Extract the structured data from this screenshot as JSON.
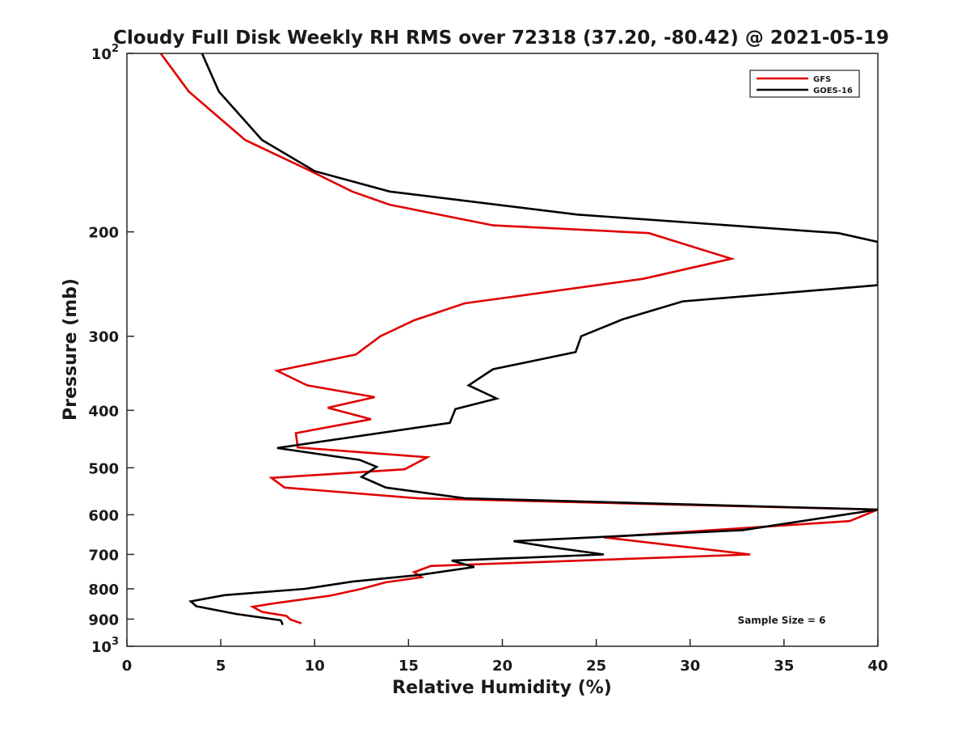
{
  "chart_data": {
    "type": "line",
    "title": "Cloudy Full Disk Weekly RH RMS over 72318 (37.20, -80.42) @ 2021-05-19",
    "xlabel": "Relative Humidity (%)",
    "ylabel": "Pressure (mb)",
    "xlim": [
      0,
      40
    ],
    "ylim": [
      100,
      1000
    ],
    "yscale": "log",
    "y_reversed": true,
    "grid": false,
    "legend_position": "top-right",
    "x_ticks": [
      {
        "value": 0,
        "label": "0"
      },
      {
        "value": 5,
        "label": "5"
      },
      {
        "value": 10,
        "label": "10"
      },
      {
        "value": 15,
        "label": "15"
      },
      {
        "value": 20,
        "label": "20"
      },
      {
        "value": 25,
        "label": "25"
      },
      {
        "value": 30,
        "label": "30"
      },
      {
        "value": 35,
        "label": "35"
      },
      {
        "value": 40,
        "label": "40"
      }
    ],
    "y_ticks": [
      {
        "value": 100,
        "base": "10",
        "exp": "2"
      },
      {
        "value": 200,
        "label": "200"
      },
      {
        "value": 300,
        "label": "300"
      },
      {
        "value": 400,
        "label": "400"
      },
      {
        "value": 500,
        "label": "500"
      },
      {
        "value": 600,
        "label": "600"
      },
      {
        "value": 700,
        "label": "700"
      },
      {
        "value": 800,
        "label": "800"
      },
      {
        "value": 900,
        "label": "900"
      },
      {
        "value": 1000,
        "base": "10",
        "exp": "3"
      }
    ],
    "series": [
      {
        "name": "GFS",
        "color": "#e00000",
        "points": [
          [
            1.8,
            100
          ],
          [
            3.3,
            116
          ],
          [
            6.3,
            140
          ],
          [
            9.8,
            158
          ],
          [
            12.0,
            171
          ],
          [
            14.0,
            180
          ],
          [
            19.5,
            195
          ],
          [
            27.8,
            201
          ],
          [
            32.2,
            222
          ],
          [
            27.5,
            240
          ],
          [
            18.0,
            264
          ],
          [
            15.3,
            282
          ],
          [
            13.5,
            300
          ],
          [
            12.2,
            322
          ],
          [
            8.0,
            343
          ],
          [
            9.6,
            363
          ],
          [
            13.2,
            380
          ],
          [
            10.7,
            396
          ],
          [
            13.0,
            414
          ],
          [
            9.0,
            437
          ],
          [
            9.1,
            462
          ],
          [
            16.0,
            480
          ],
          [
            14.8,
            503
          ],
          [
            7.7,
            520
          ],
          [
            8.4,
            540
          ],
          [
            15.5,
            563
          ],
          [
            40.0,
            588
          ],
          [
            38.5,
            615
          ],
          [
            25.4,
            655
          ],
          [
            33.2,
            700
          ],
          [
            16.2,
            732
          ],
          [
            15.3,
            750
          ],
          [
            15.7,
            765
          ],
          [
            13.8,
            780
          ],
          [
            12.5,
            800
          ],
          [
            10.8,
            822
          ],
          [
            8.0,
            845
          ],
          [
            6.7,
            858
          ],
          [
            7.2,
            875
          ],
          [
            8.5,
            889
          ],
          [
            8.7,
            901
          ],
          [
            9.3,
            915
          ]
        ]
      },
      {
        "name": "GOES-16",
        "color": "#000000",
        "points": [
          [
            4.0,
            100
          ],
          [
            4.9,
            116
          ],
          [
            7.2,
            140
          ],
          [
            10.0,
            158
          ],
          [
            14.0,
            171
          ],
          [
            24.0,
            187
          ],
          [
            37.9,
            201
          ],
          [
            40.0,
            208
          ],
          [
            40.0,
            246
          ],
          [
            29.6,
            262
          ],
          [
            26.4,
            281
          ],
          [
            24.2,
            300
          ],
          [
            23.9,
            319
          ],
          [
            19.5,
            341
          ],
          [
            18.2,
            363
          ],
          [
            19.7,
            382
          ],
          [
            17.5,
            398
          ],
          [
            17.2,
            420
          ],
          [
            8.0,
            463
          ],
          [
            12.4,
            485
          ],
          [
            13.3,
            498
          ],
          [
            12.5,
            518
          ],
          [
            13.8,
            540
          ],
          [
            18.0,
            563
          ],
          [
            40.0,
            588
          ],
          [
            32.8,
            637
          ],
          [
            20.6,
            665
          ],
          [
            22.5,
            680
          ],
          [
            25.4,
            700
          ],
          [
            17.3,
            717
          ],
          [
            18.5,
            735
          ],
          [
            15.6,
            758
          ],
          [
            12.0,
            778
          ],
          [
            9.5,
            800
          ],
          [
            5.2,
            820
          ],
          [
            3.4,
            840
          ],
          [
            3.7,
            856
          ],
          [
            5.8,
            882
          ],
          [
            8.2,
            904
          ],
          [
            8.3,
            920
          ]
        ]
      }
    ],
    "legend": [
      {
        "label": "GFS",
        "color": "#e00000"
      },
      {
        "label": "GOES-16",
        "color": "#000000"
      }
    ],
    "annotations": [
      {
        "text": "Sample Size = 6",
        "x": 35,
        "p": 900
      }
    ]
  }
}
